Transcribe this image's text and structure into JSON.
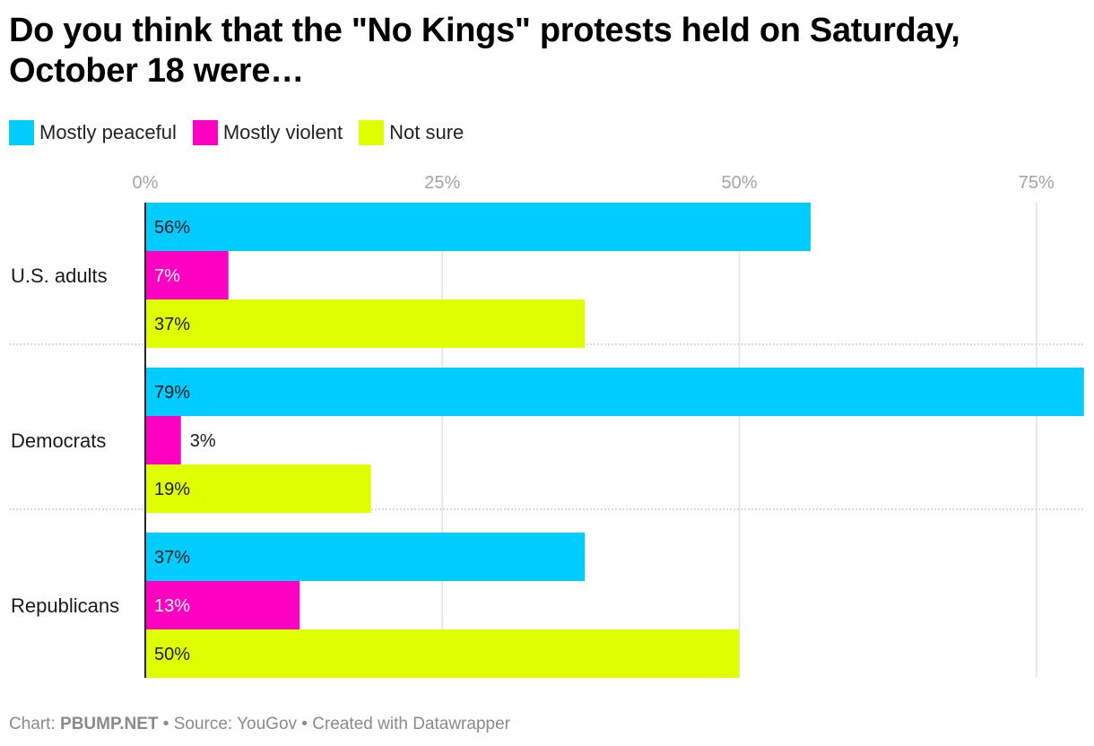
{
  "title": "Do you think that the \"No Kings\" protests held on Saturday, October 18 were…",
  "legend": [
    {
      "label": "Mostly peaceful",
      "color": "#00ccff"
    },
    {
      "label": "Mostly violent",
      "color": "#ff00c3"
    },
    {
      "label": "Not sure",
      "color": "#dfff00"
    }
  ],
  "footer": {
    "chart_prefix": "Chart: ",
    "chart_source": "PBUMP.NET",
    "separator1": " • ",
    "source_text": "Source: YouGov",
    "separator2": " • ",
    "created_text": "Created with Datawrapper"
  },
  "chart_data": {
    "type": "bar",
    "orientation": "horizontal",
    "title": "Do you think that the \"No Kings\" protests held on Saturday, October 18 were…",
    "categories": [
      "U.S. adults",
      "Democrats",
      "Republicans"
    ],
    "series": [
      {
        "name": "Mostly peaceful",
        "color": "#00ccff",
        "values": [
          56,
          79,
          37
        ],
        "labels": [
          "56%",
          "79%",
          "37%"
        ]
      },
      {
        "name": "Mostly violent",
        "color": "#ff00c3",
        "values": [
          7,
          3,
          13
        ],
        "labels": [
          "7%",
          "3%",
          "13%"
        ]
      },
      {
        "name": "Not sure",
        "color": "#dfff00",
        "values": [
          37,
          19,
          50
        ],
        "labels": [
          "37%",
          "19%",
          "50%"
        ]
      }
    ],
    "x_ticks": [
      0,
      25,
      50,
      75
    ],
    "x_tick_labels": [
      "0%",
      "25%",
      "50%",
      "75%"
    ],
    "xlim": [
      0,
      79
    ],
    "grid": true,
    "legend_position": "top-left"
  }
}
